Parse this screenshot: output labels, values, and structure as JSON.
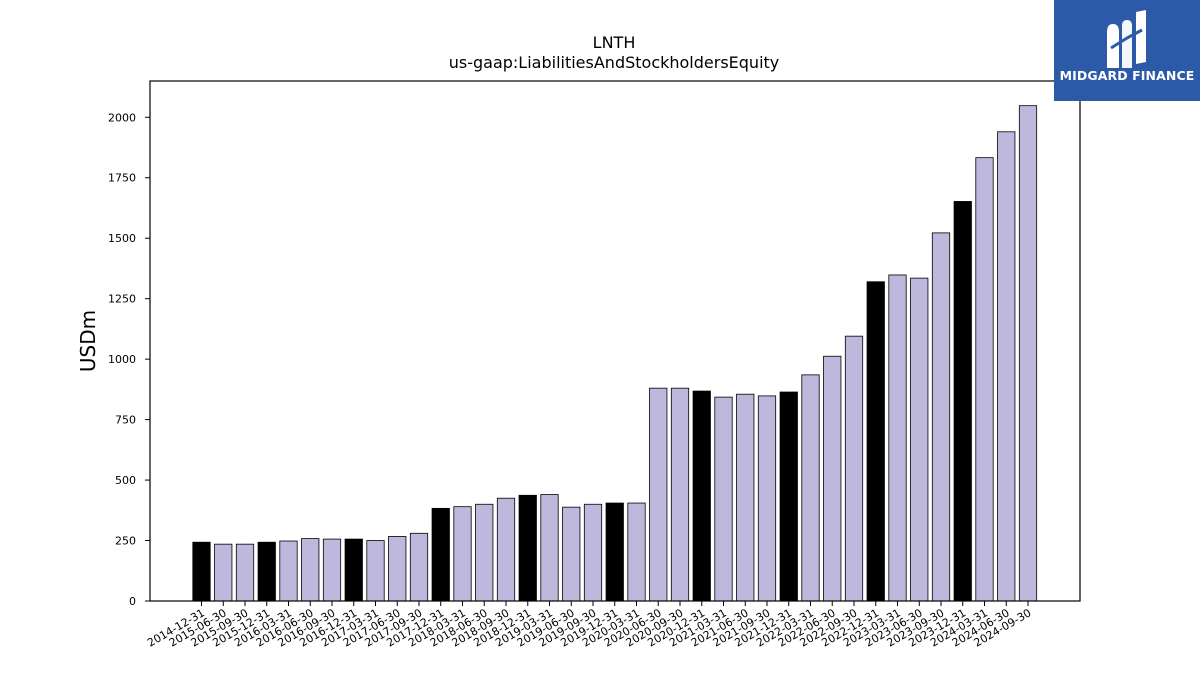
{
  "chart_data": {
    "type": "bar",
    "title": "LNTH",
    "subtitle": "us-gaap:LiabilitiesAndStockholdersEquity",
    "xlabel": "",
    "ylabel": "USDm",
    "ylim": [
      0,
      2150
    ],
    "yticks": [
      0,
      250,
      500,
      750,
      1000,
      1250,
      1500,
      1750,
      2000
    ],
    "grid": false,
    "colors": {
      "fiscal_year_end": "#000000",
      "quarter": "#bdb8dc",
      "edge": "#000000"
    },
    "categories": [
      "2014-12-31",
      "2015-06-30",
      "2015-09-30",
      "2015-12-31",
      "2016-03-31",
      "2016-06-30",
      "2016-09-30",
      "2016-12-31",
      "2017-03-31",
      "2017-06-30",
      "2017-09-30",
      "2017-12-31",
      "2018-03-31",
      "2018-06-30",
      "2018-09-30",
      "2018-12-31",
      "2019-03-31",
      "2019-06-30",
      "2019-09-30",
      "2019-12-31",
      "2020-03-31",
      "2020-06-30",
      "2020-09-30",
      "2020-12-31",
      "2021-03-31",
      "2021-06-30",
      "2021-09-30",
      "2021-12-31",
      "2022-03-31",
      "2022-06-30",
      "2022-09-30",
      "2022-12-31",
      "2023-03-31",
      "2023-06-30",
      "2023-09-30",
      "2023-12-31",
      "2024-03-31",
      "2024-06-30",
      "2024-09-30"
    ],
    "values": [
      243,
      235,
      235,
      243,
      248,
      258,
      256,
      256,
      250,
      267,
      280,
      383,
      390,
      400,
      425,
      437,
      440,
      388,
      400,
      405,
      405,
      880,
      880,
      868,
      843,
      855,
      848,
      864,
      935,
      1012,
      1095,
      1320,
      1348,
      1335,
      1522,
      1652,
      1833,
      1940,
      2048
    ],
    "fiscal_year_end": [
      true,
      false,
      false,
      true,
      false,
      false,
      false,
      true,
      false,
      false,
      false,
      true,
      false,
      false,
      false,
      true,
      false,
      false,
      false,
      true,
      false,
      false,
      false,
      true,
      false,
      false,
      false,
      true,
      false,
      false,
      false,
      true,
      false,
      false,
      false,
      true,
      false,
      false,
      false
    ]
  },
  "logo": {
    "text": "MIDGARD FINANCE",
    "bg": "#2c5aa8"
  }
}
